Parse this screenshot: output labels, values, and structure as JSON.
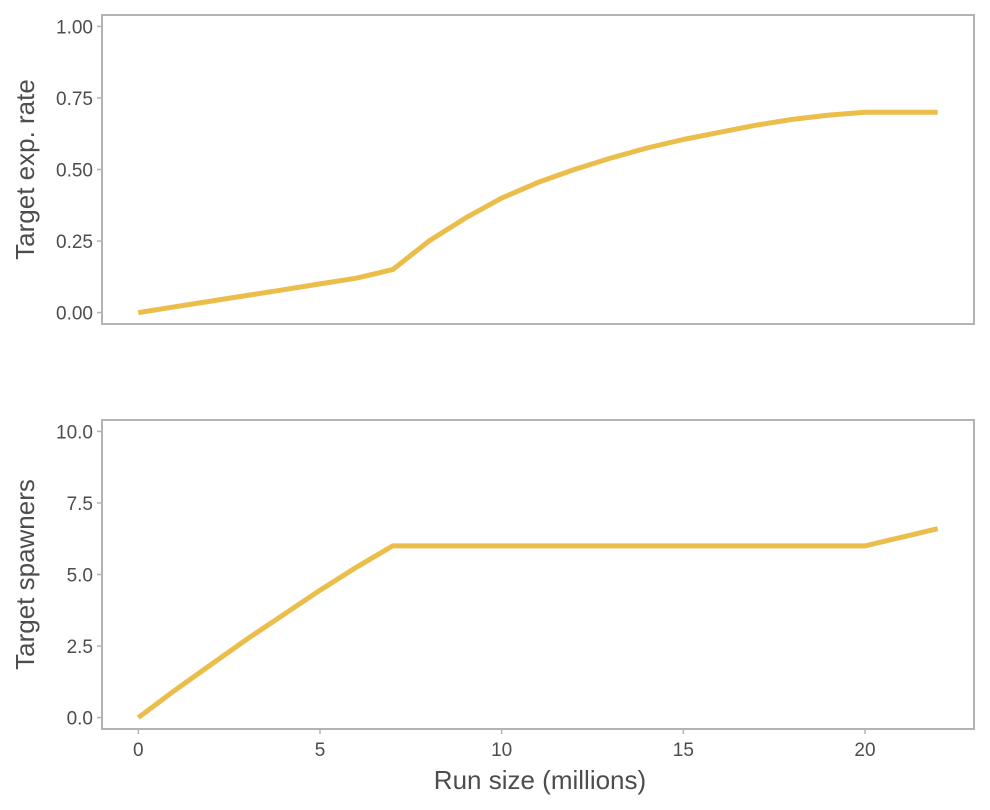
{
  "chart_data": [
    {
      "type": "line",
      "ylabel": "Target exp. rate",
      "xlabel": "",
      "xlim": [
        -1,
        23
      ],
      "ylim": [
        -0.04,
        1.04
      ],
      "yticks": [
        0,
        0.25,
        0.5,
        0.75,
        1.0
      ],
      "ytick_labels": [
        "0.00",
        "0.25",
        "0.50",
        "0.75",
        "1.00"
      ],
      "show_x_ticks": false,
      "grid": false,
      "series": [
        {
          "color": "#ebbd4a",
          "x": [
            0,
            1,
            2,
            3,
            4,
            5,
            6,
            7,
            8,
            9,
            10,
            11,
            12,
            13,
            14,
            15,
            16,
            17,
            18,
            19,
            20,
            21,
            22
          ],
          "y": [
            0.0,
            0.02,
            0.04,
            0.06,
            0.08,
            0.1,
            0.12,
            0.15,
            0.25,
            0.33,
            0.4,
            0.455,
            0.5,
            0.54,
            0.575,
            0.605,
            0.63,
            0.655,
            0.675,
            0.69,
            0.7,
            0.7,
            0.7
          ]
        }
      ]
    },
    {
      "type": "line",
      "ylabel": "Target spawners",
      "xlabel": "Run size (millions)",
      "xlim": [
        -1,
        23
      ],
      "ylim": [
        -0.4,
        10.4
      ],
      "yticks": [
        0,
        2.5,
        5,
        7.5,
        10
      ],
      "ytick_labels": [
        "0.0",
        "2.5",
        "5.0",
        "7.5",
        "10.0"
      ],
      "xticks": [
        0,
        5,
        10,
        15,
        20
      ],
      "xtick_labels": [
        "0",
        "5",
        "10",
        "15",
        "20"
      ],
      "show_x_ticks": true,
      "grid": false,
      "series": [
        {
          "color": "#ebbd4a",
          "x": [
            0,
            1,
            2,
            3,
            4,
            5,
            6,
            7,
            8,
            10,
            15,
            20,
            21,
            22
          ],
          "y": [
            0.0,
            0.95,
            1.85,
            2.75,
            3.6,
            4.45,
            5.25,
            6.0,
            6.0,
            6.0,
            6.0,
            6.0,
            6.3,
            6.6
          ]
        }
      ]
    }
  ]
}
